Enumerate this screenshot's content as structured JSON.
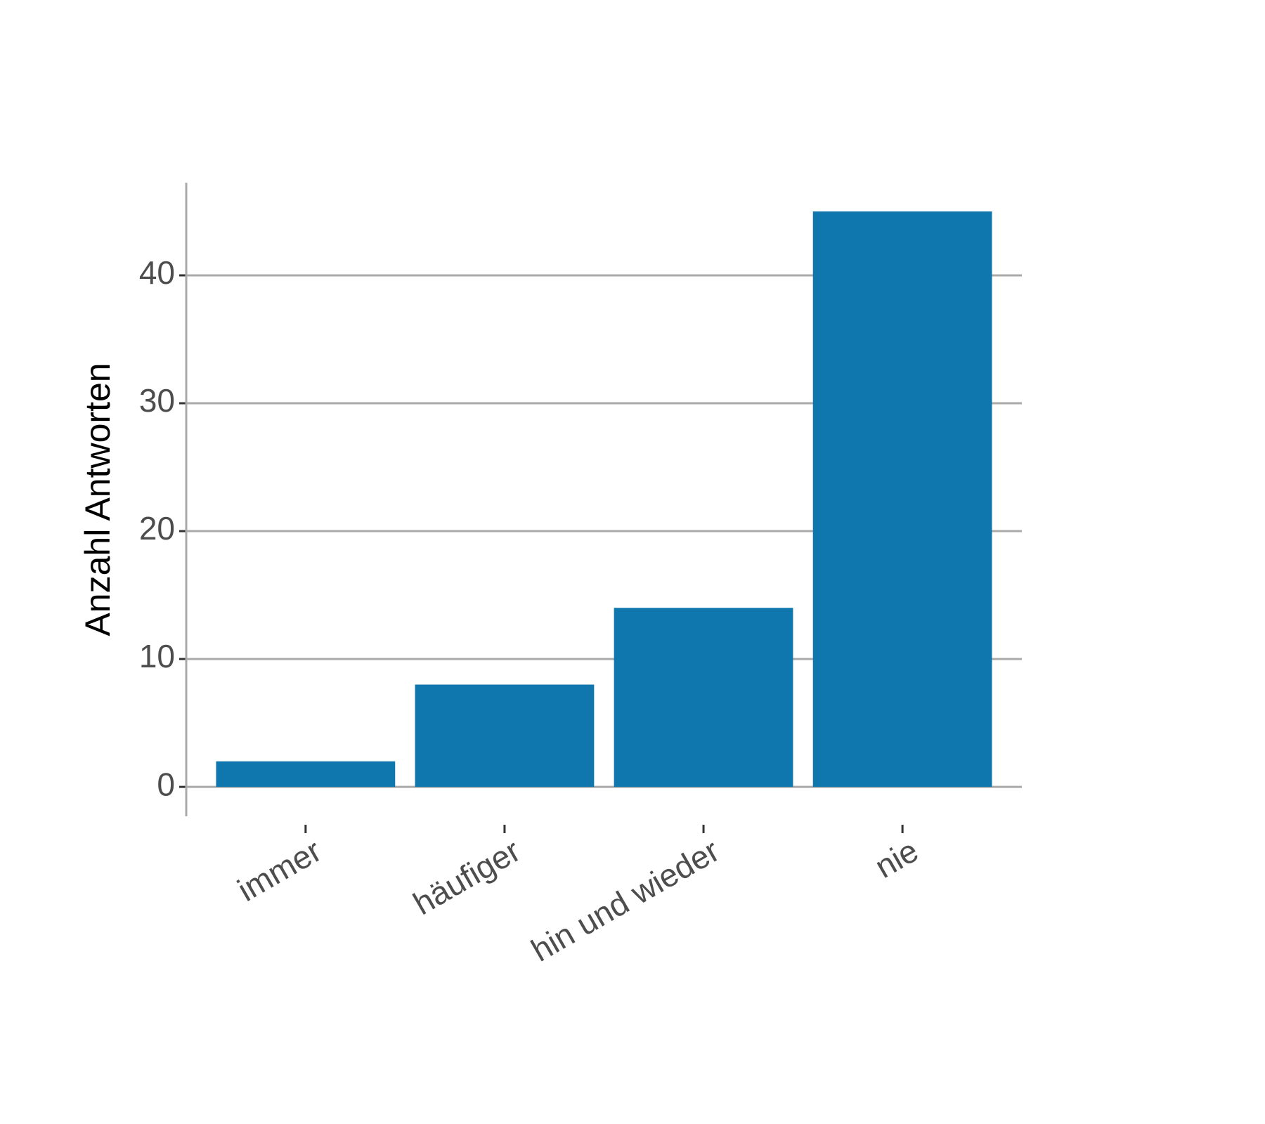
{
  "chart_data": {
    "type": "bar",
    "y_label": "Anzahl Antworten",
    "categories": [
      "immer",
      "häufiger",
      "hin und wieder",
      "nie"
    ],
    "values": [
      2,
      8,
      14,
      45
    ],
    "color": "#0f77ae",
    "ylim": [
      -2.3,
      47.25
    ],
    "yticks": [
      0,
      10,
      20,
      30,
      40
    ],
    "grid": true
  }
}
